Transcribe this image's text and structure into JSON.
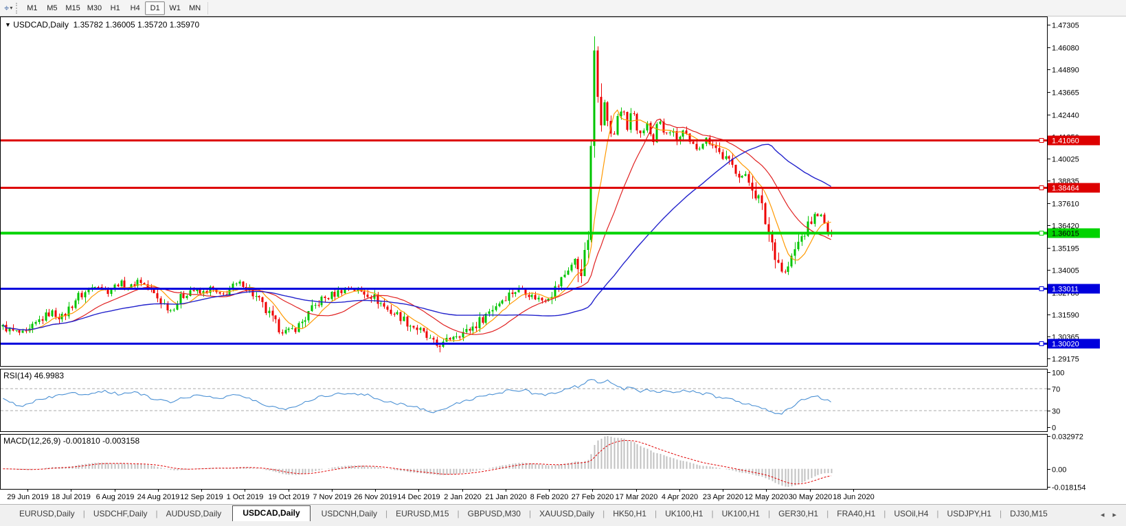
{
  "toolbar": {
    "cursor_icon": "chart-cursor",
    "timeframes": [
      {
        "label": "M1",
        "active": false
      },
      {
        "label": "M5",
        "active": false
      },
      {
        "label": "M15",
        "active": false
      },
      {
        "label": "M30",
        "active": false
      },
      {
        "label": "H1",
        "active": false
      },
      {
        "label": "H4",
        "active": false
      },
      {
        "label": "D1",
        "active": true
      },
      {
        "label": "W1",
        "active": false
      },
      {
        "label": "MN",
        "active": false
      }
    ]
  },
  "chart": {
    "symbol_title": "USDCAD,Daily",
    "quotes": "1.35782 1.36005 1.35720 1.35970",
    "marker": "▼"
  },
  "chart_data": {
    "type": "candlestick",
    "symbol": "USDCAD",
    "timeframe": "Daily",
    "colors": {
      "up": "#00c400",
      "down": "#ee0000",
      "ma_fast": "#ff9900",
      "ma_mid": "#e02020",
      "ma_slow": "#2222cc",
      "rsi_line": "#4a90d4",
      "macd_hist": "#c0c0c0",
      "macd_signal": "#e00000"
    },
    "price_axis": {
      "range": [
        1.2878,
        1.4772
      ],
      "ticks": [
        "1.47305",
        "1.46080",
        "1.44890",
        "1.43665",
        "1.42440",
        "1.41250",
        "1.40025",
        "1.38835",
        "1.37610",
        "1.36420",
        "1.35195",
        "1.34005",
        "1.32780",
        "1.31590",
        "1.30365",
        "1.29175"
      ]
    },
    "levels": [
      {
        "price": 1.4106,
        "label": "1.41060",
        "color": "#dd0000",
        "text_color": "#ffffff",
        "width": 3
      },
      {
        "price": 1.38464,
        "label": "1.38464",
        "color": "#dd0000",
        "text_color": "#ffffff",
        "width": 3
      },
      {
        "price": 1.36015,
        "label": "1.36015",
        "color": "#00d300",
        "text_color": "#000000",
        "width": 4
      },
      {
        "price": 1.33011,
        "label": "1.33011",
        "color": "#0000dd",
        "text_color": "#ffffff",
        "width": 3
      },
      {
        "price": 1.3002,
        "label": "1.30020",
        "color": "#0000dd",
        "text_color": "#ffffff",
        "width": 3
      }
    ],
    "date_labels": [
      "29 Jun 2019",
      "18 Jul 2019",
      "6 Aug 2019",
      "24 Aug 2019",
      "12 Sep 2019",
      "1 Oct 2019",
      "19 Oct 2019",
      "7 Nov 2019",
      "26 Nov 2019",
      "14 Dec 2019",
      "2 Jan 2020",
      "21 Jan 2020",
      "8 Feb 2020",
      "27 Feb 2020",
      "17 Mar 2020",
      "4 Apr 2020",
      "23 Apr 2020",
      "12 May 2020",
      "30 May 2020",
      "18 Jun 2020"
    ],
    "candles": {
      "count": 253,
      "last_close": 1.3597,
      "max_high": 1.4668,
      "min_low": 1.2952,
      "close_anchors": [
        [
          0.0,
          1.309
        ],
        [
          0.012,
          1.3065
        ],
        [
          0.028,
          1.3048
        ],
        [
          0.045,
          1.313
        ],
        [
          0.058,
          1.317
        ],
        [
          0.072,
          1.314
        ],
        [
          0.088,
          1.3245
        ],
        [
          0.102,
          1.3285
        ],
        [
          0.113,
          1.333
        ],
        [
          0.126,
          1.328
        ],
        [
          0.14,
          1.333
        ],
        [
          0.153,
          1.33
        ],
        [
          0.164,
          1.335
        ],
        [
          0.177,
          1.329
        ],
        [
          0.192,
          1.3225
        ],
        [
          0.202,
          1.318
        ],
        [
          0.214,
          1.3245
        ],
        [
          0.227,
          1.3295
        ],
        [
          0.239,
          1.3268
        ],
        [
          0.251,
          1.33
        ],
        [
          0.263,
          1.3252
        ],
        [
          0.279,
          1.3312
        ],
        [
          0.289,
          1.333
        ],
        [
          0.302,
          1.3268
        ],
        [
          0.317,
          1.318
        ],
        [
          0.331,
          1.3092
        ],
        [
          0.343,
          1.306
        ],
        [
          0.356,
          1.3092
        ],
        [
          0.369,
          1.316
        ],
        [
          0.383,
          1.3235
        ],
        [
          0.397,
          1.3262
        ],
        [
          0.409,
          1.329
        ],
        [
          0.419,
          1.3302
        ],
        [
          0.431,
          1.3282
        ],
        [
          0.443,
          1.3268
        ],
        [
          0.454,
          1.3228
        ],
        [
          0.465,
          1.318
        ],
        [
          0.477,
          1.3155
        ],
        [
          0.489,
          1.3112
        ],
        [
          0.501,
          1.3078
        ],
        [
          0.513,
          1.3028
        ],
        [
          0.523,
          1.2988
        ],
        [
          0.532,
          1.2998
        ],
        [
          0.544,
          1.3048
        ],
        [
          0.558,
          1.3062
        ],
        [
          0.571,
          1.3102
        ],
        [
          0.584,
          1.3162
        ],
        [
          0.598,
          1.3222
        ],
        [
          0.612,
          1.3272
        ],
        [
          0.626,
          1.33
        ],
        [
          0.639,
          1.3255
        ],
        [
          0.651,
          1.3238
        ],
        [
          0.662,
          1.3272
        ],
        [
          0.672,
          1.3325
        ],
        [
          0.682,
          1.3405
        ],
        [
          0.69,
          1.3445
        ],
        [
          0.697,
          1.3408
        ],
        [
          0.702,
          1.3445
        ],
        [
          0.706,
          1.356
        ],
        [
          0.709,
          1.375
        ],
        [
          0.712,
          1.438
        ],
        [
          0.714,
          1.462
        ],
        [
          0.717,
          1.433
        ],
        [
          0.72,
          1.449
        ],
        [
          0.723,
          1.416
        ],
        [
          0.727,
          1.434
        ],
        [
          0.731,
          1.419
        ],
        [
          0.736,
          1.408
        ],
        [
          0.742,
          1.424
        ],
        [
          0.748,
          1.428
        ],
        [
          0.754,
          1.416
        ],
        [
          0.76,
          1.429
        ],
        [
          0.766,
          1.414
        ],
        [
          0.772,
          1.411
        ],
        [
          0.778,
          1.42
        ],
        [
          0.785,
          1.409
        ],
        [
          0.792,
          1.423
        ],
        [
          0.799,
          1.412
        ],
        [
          0.806,
          1.416
        ],
        [
          0.814,
          1.41
        ],
        [
          0.822,
          1.415
        ],
        [
          0.83,
          1.408
        ],
        [
          0.839,
          1.4062
        ],
        [
          0.848,
          1.411
        ],
        [
          0.857,
          1.409
        ],
        [
          0.866,
          1.403
        ],
        [
          0.876,
          1.3985
        ],
        [
          0.887,
          1.3935
        ],
        [
          0.897,
          1.3895
        ],
        [
          0.905,
          1.3858
        ],
        [
          0.914,
          1.3768
        ],
        [
          0.922,
          1.3645
        ],
        [
          0.93,
          1.3528
        ],
        [
          0.938,
          1.3425
        ],
        [
          0.943,
          1.3372
        ],
        [
          0.95,
          1.3432
        ],
        [
          0.958,
          1.3525
        ],
        [
          0.966,
          1.3592
        ],
        [
          0.973,
          1.364
        ],
        [
          0.98,
          1.3692
        ],
        [
          0.986,
          1.3712
        ],
        [
          0.991,
          1.3652
        ],
        [
          0.996,
          1.3612
        ],
        [
          1.0,
          1.3597
        ]
      ]
    },
    "moving_averages": [
      {
        "name": "fast",
        "period": 8
      },
      {
        "name": "mid",
        "period": 21
      },
      {
        "name": "slow",
        "period": 55
      }
    ],
    "rsi": {
      "label": "RSI(14) 46.9983",
      "ticks": [
        "100",
        "70",
        "30",
        "0"
      ],
      "guide_levels": [
        70,
        30
      ],
      "anchors": [
        [
          0.0,
          50
        ],
        [
          0.02,
          38
        ],
        [
          0.04,
          48
        ],
        [
          0.06,
          55
        ],
        [
          0.08,
          62
        ],
        [
          0.1,
          60
        ],
        [
          0.12,
          66
        ],
        [
          0.14,
          60
        ],
        [
          0.16,
          64
        ],
        [
          0.18,
          52
        ],
        [
          0.2,
          45
        ],
        [
          0.22,
          55
        ],
        [
          0.24,
          58
        ],
        [
          0.26,
          52
        ],
        [
          0.28,
          60
        ],
        [
          0.3,
          50
        ],
        [
          0.32,
          38
        ],
        [
          0.34,
          33
        ],
        [
          0.36,
          42
        ],
        [
          0.38,
          55
        ],
        [
          0.4,
          60
        ],
        [
          0.42,
          62
        ],
        [
          0.44,
          58
        ],
        [
          0.46,
          48
        ],
        [
          0.48,
          42
        ],
        [
          0.5,
          36
        ],
        [
          0.52,
          28
        ],
        [
          0.535,
          33
        ],
        [
          0.55,
          45
        ],
        [
          0.57,
          52
        ],
        [
          0.59,
          60
        ],
        [
          0.61,
          66
        ],
        [
          0.63,
          68
        ],
        [
          0.64,
          60
        ],
        [
          0.655,
          58
        ],
        [
          0.67,
          65
        ],
        [
          0.685,
          72
        ],
        [
          0.7,
          75
        ],
        [
          0.71,
          88
        ],
        [
          0.72,
          80
        ],
        [
          0.73,
          85
        ],
        [
          0.74,
          78
        ],
        [
          0.75,
          70
        ],
        [
          0.76,
          73
        ],
        [
          0.77,
          65
        ],
        [
          0.78,
          68
        ],
        [
          0.79,
          64
        ],
        [
          0.8,
          68
        ],
        [
          0.81,
          63
        ],
        [
          0.82,
          65
        ],
        [
          0.83,
          66
        ],
        [
          0.84,
          60
        ],
        [
          0.85,
          62
        ],
        [
          0.86,
          55
        ],
        [
          0.87,
          50
        ],
        [
          0.88,
          53
        ],
        [
          0.89,
          45
        ],
        [
          0.9,
          42
        ],
        [
          0.91,
          38
        ],
        [
          0.92,
          32
        ],
        [
          0.93,
          27
        ],
        [
          0.94,
          25
        ],
        [
          0.95,
          35
        ],
        [
          0.96,
          45
        ],
        [
          0.97,
          52
        ],
        [
          0.98,
          58
        ],
        [
          0.99,
          52
        ],
        [
          1.0,
          47
        ]
      ]
    },
    "macd": {
      "label": "MACD(12,26,9) -0.001810 -0.003158",
      "fast": 12,
      "slow": 26,
      "signal": 9,
      "ticks": [
        "0.032972",
        "0.00",
        "-0.018154"
      ],
      "range": [
        -0.018154,
        0.032972
      ]
    }
  },
  "tabs": {
    "items": [
      {
        "label": "EURUSD,Daily",
        "active": false
      },
      {
        "label": "USDCHF,Daily",
        "active": false
      },
      {
        "label": "AUDUSD,Daily",
        "active": false
      },
      {
        "label": "USDCAD,Daily",
        "active": true
      },
      {
        "label": "USDCNH,Daily",
        "active": false
      },
      {
        "label": "EURUSD,M15",
        "active": false
      },
      {
        "label": "GBPUSD,M30",
        "active": false
      },
      {
        "label": "XAUUSD,Daily",
        "active": false
      },
      {
        "label": "HK50,H1",
        "active": false
      },
      {
        "label": "UK100,H1",
        "active": false
      },
      {
        "label": "UK100,H1",
        "active": false
      },
      {
        "label": "GER30,H1",
        "active": false
      },
      {
        "label": "FRA40,H1",
        "active": false
      },
      {
        "label": "USOil,H4",
        "active": false
      },
      {
        "label": "USDJPY,H1",
        "active": false
      },
      {
        "label": "DJ30,M15",
        "active": false
      }
    ],
    "scroll_left": "◂",
    "scroll_right": "▸"
  }
}
